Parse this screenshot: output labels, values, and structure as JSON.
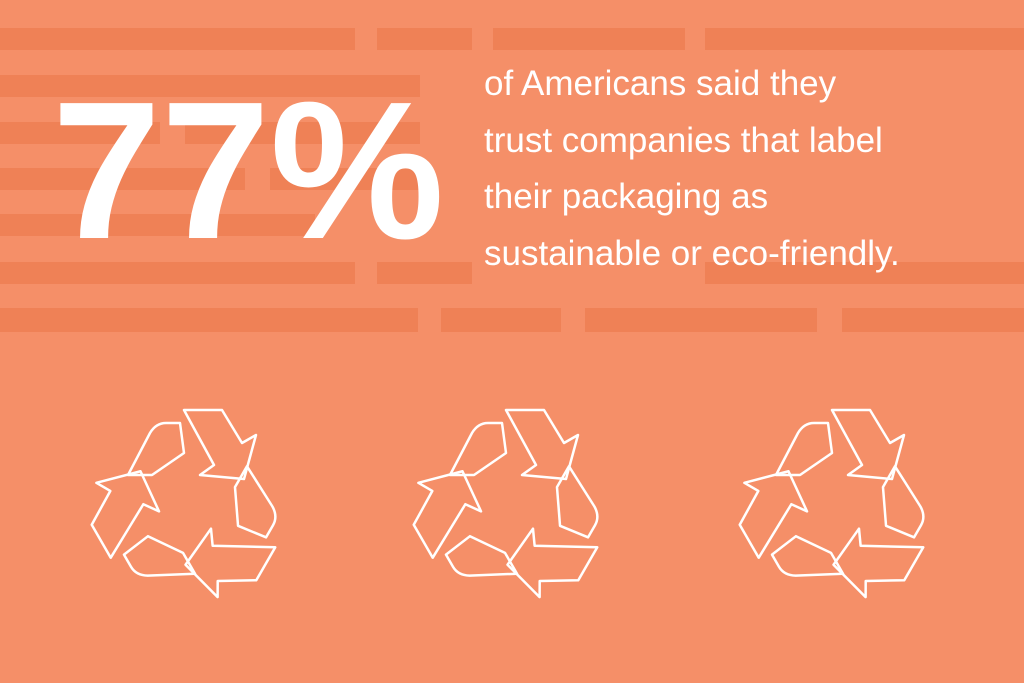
{
  "stat": "77%",
  "description_lines": [
    "of Americans said they",
    "trust companies that label",
    "their packaging as",
    "sustainable or eco-friendly."
  ]
}
